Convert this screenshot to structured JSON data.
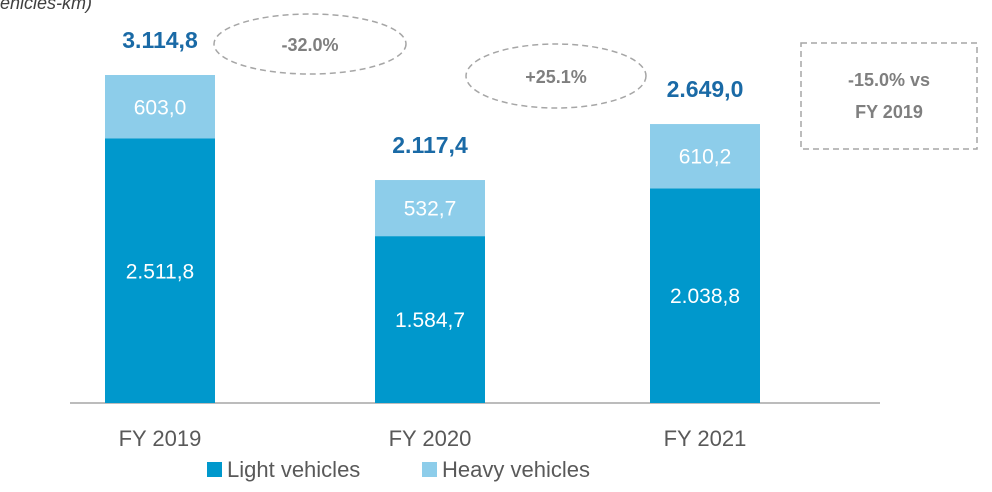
{
  "chart_data": {
    "type": "stacked_bar",
    "subtitle": "ehicles-km)",
    "categories": [
      "FY 2019",
      "FY 2020",
      "FY 2021"
    ],
    "series": [
      {
        "name": "Light vehicles",
        "color": "#0098cc",
        "values": [
          2511.8,
          1584.7,
          2038.8
        ],
        "value_labels": [
          "2.511,8",
          "1.584,7",
          "2.038,8"
        ]
      },
      {
        "name": "Heavy vehicles",
        "color": "#8dcdea",
        "values": [
          603.0,
          532.7,
          610.2
        ],
        "value_labels": [
          "603,0",
          "532,7",
          "610,2"
        ]
      }
    ],
    "totals": {
      "values": [
        3114.8,
        2117.4,
        2649.0
      ],
      "value_labels": [
        "3.114,8",
        "2.117,4",
        "2.649,0"
      ]
    },
    "annotations": [
      {
        "text": "-32.0%"
      },
      {
        "text": "+25.1%"
      },
      {
        "lines": [
          "-15.0% vs",
          "FY 2019"
        ]
      }
    ]
  }
}
